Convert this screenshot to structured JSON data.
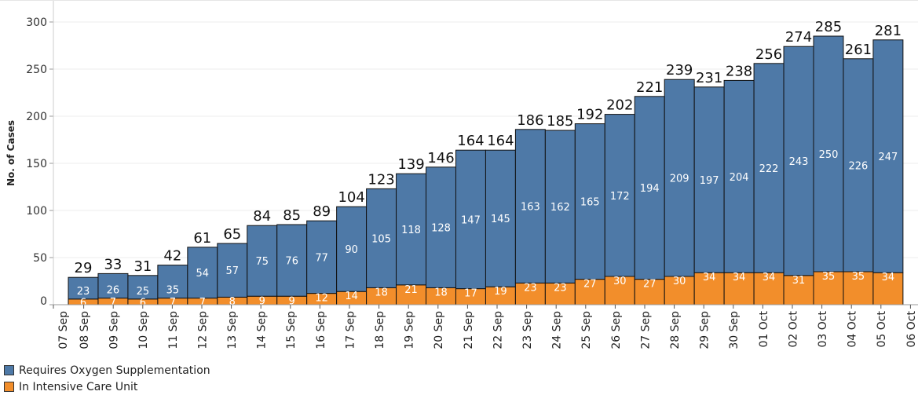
{
  "chart_data": {
    "type": "bar",
    "stacked": true,
    "ylabel": "No. of Cases",
    "xlabel": "",
    "ylim": [
      0,
      310
    ],
    "yticks": [
      0,
      50,
      100,
      150,
      200,
      250,
      300
    ],
    "grid": true,
    "legend_placement": "bottom-left",
    "x_tick_labels": [
      "07 Sep",
      "08 Sep",
      "09 Sep",
      "10 Sep",
      "11 Sep",
      "12 Sep",
      "13 Sep",
      "14 Sep",
      "15 Sep",
      "16 Sep",
      "17 Sep",
      "18 Sep",
      "19 Sep",
      "20 Sep",
      "21 Sep",
      "22 Sep",
      "23 Sep",
      "24 Sep",
      "25 Sep",
      "26 Sep",
      "27 Sep",
      "28 Sep",
      "29 Sep",
      "30 Sep",
      "01 Oct",
      "02 Oct",
      "03 Oct",
      "04 Oct",
      "05 Oct",
      "06 Oct"
    ],
    "categories": [
      "08 Sep",
      "09 Sep",
      "10 Sep",
      "11 Sep",
      "12 Sep",
      "13 Sep",
      "14 Sep",
      "15 Sep",
      "16 Sep",
      "17 Sep",
      "18 Sep",
      "19 Sep",
      "20 Sep",
      "21 Sep",
      "22 Sep",
      "23 Sep",
      "24 Sep",
      "25 Sep",
      "26 Sep",
      "27 Sep",
      "28 Sep",
      "29 Sep",
      "30 Sep",
      "01 Oct",
      "02 Oct",
      "03 Oct",
      "04 Oct",
      "05 Oct"
    ],
    "series": [
      {
        "name": "In Intensive Care Unit",
        "color": "#f28e2b",
        "values": [
          6,
          7,
          6,
          7,
          7,
          8,
          9,
          9,
          12,
          14,
          18,
          21,
          18,
          17,
          19,
          23,
          23,
          27,
          30,
          27,
          30,
          34,
          34,
          34,
          31,
          35,
          35,
          34
        ]
      },
      {
        "name": "Requires Oxygen Supplementation",
        "color": "#4e79a7",
        "values": [
          23,
          26,
          25,
          35,
          54,
          57,
          75,
          76,
          77,
          90,
          105,
          118,
          128,
          147,
          145,
          163,
          162,
          165,
          172,
          194,
          209,
          197,
          204,
          222,
          243,
          250,
          226,
          247
        ]
      }
    ],
    "totals": [
      29,
      33,
      31,
      42,
      61,
      65,
      84,
      85,
      89,
      104,
      123,
      139,
      146,
      164,
      164,
      186,
      185,
      192,
      202,
      221,
      239,
      231,
      238,
      256,
      274,
      285,
      261,
      281
    ]
  },
  "legend": [
    {
      "label": "Requires Oxygen Supplementation",
      "color": "#4e79a7"
    },
    {
      "label": "In Intensive Care Unit",
      "color": "#f28e2b"
    }
  ]
}
